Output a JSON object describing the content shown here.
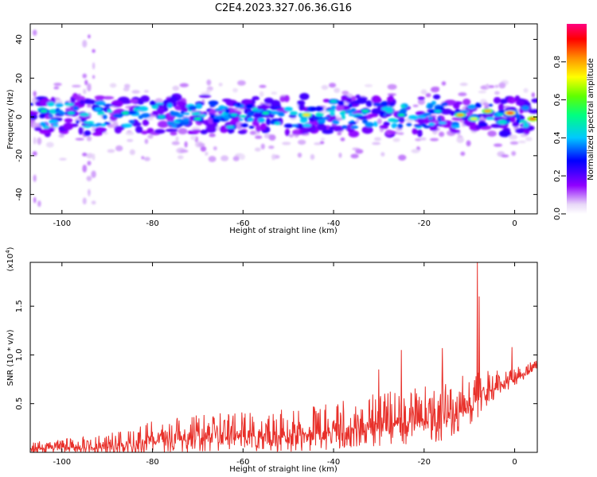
{
  "title": "C2E4.2023.327.06.36.G16",
  "colors": {
    "snr_line": "#e8302a",
    "frame": "#000000"
  },
  "chart_data": [
    {
      "type": "heatmap",
      "xlabel": "Height of straight line (km)",
      "ylabel": "Frequency (Hz)",
      "xlim": [
        -107,
        5
      ],
      "ylim": [
        -50,
        48
      ],
      "x_ticks": [
        -100,
        -80,
        -60,
        -40,
        -20,
        0
      ],
      "x_tick_labels": [
        "-100",
        "-80",
        "-60",
        "-40",
        "-20",
        "0"
      ],
      "y_ticks": [
        -40,
        -20,
        0,
        20,
        40
      ],
      "y_tick_labels": [
        "-40",
        "-20",
        "0",
        "20",
        "40"
      ],
      "colorbar": {
        "label": "Normalized spectral amplitude",
        "range": [
          0,
          1
        ],
        "ticks": [
          0.0,
          0.2,
          0.4,
          0.6,
          0.8
        ],
        "tick_labels": [
          "0.0",
          "0.2",
          "0.4",
          "0.6",
          "0.8"
        ]
      },
      "main_band": {
        "center_hz": 1,
        "half_width_hz": 7
      },
      "spots": [
        {
          "x": -104,
          "f": 3,
          "v": 0.5
        },
        {
          "x": -98,
          "f": 2,
          "v": 0.45
        },
        {
          "x": -92,
          "f": 4,
          "v": 0.4
        },
        {
          "x": -86,
          "f": 2,
          "v": 0.5
        },
        {
          "x": -78,
          "f": 0,
          "v": 0.45
        },
        {
          "x": -70,
          "f": -1,
          "v": 0.5
        },
        {
          "x": -62,
          "f": 1,
          "v": 0.45
        },
        {
          "x": -55,
          "f": 2,
          "v": 0.5
        },
        {
          "x": -46,
          "f": 1,
          "v": 0.75
        },
        {
          "x": -40,
          "f": 8,
          "v": 0.45
        },
        {
          "x": -33,
          "f": 3,
          "v": 0.5
        },
        {
          "x": -25,
          "f": 1,
          "v": 0.5
        },
        {
          "x": -17,
          "f": 3,
          "v": 0.45
        },
        {
          "x": -12,
          "f": 1,
          "v": 0.8
        },
        {
          "x": -9,
          "f": -1,
          "v": 0.7
        },
        {
          "x": -6,
          "f": 3,
          "v": 0.8
        },
        {
          "x": -1,
          "f": 2,
          "v": 0.95
        },
        {
          "x": 4,
          "f": -1,
          "v": 0.85
        }
      ]
    },
    {
      "type": "line",
      "xlabel": "Height of straight line (km)",
      "ylabel": "SNR (10 * v/v)",
      "y_multiplier": "(x10",
      "y_multiplier_exp": "4",
      "y_multiplier_close": ")",
      "xlim": [
        -107,
        5
      ],
      "ylim": [
        0,
        19500
      ],
      "x_ticks": [
        -100,
        -80,
        -60,
        -40,
        -20,
        0
      ],
      "x_tick_labels": [
        "-100",
        "-80",
        "-60",
        "-40",
        "-20",
        "0"
      ],
      "y_ticks": [
        5000,
        10000,
        15000
      ],
      "y_tick_labels": [
        "0.5",
        "1.0",
        "1.5"
      ],
      "envelope": {
        "x": [
          -107,
          -100,
          -92,
          -85,
          -80,
          -70,
          -60,
          -50,
          -42,
          -35,
          -28,
          -20,
          -15,
          -10,
          -5,
          -2,
          0,
          5
        ],
        "base": [
          400,
          500,
          500,
          700,
          1200,
          1500,
          1600,
          1700,
          2000,
          2400,
          2800,
          3200,
          3600,
          4500,
          6500,
          7200,
          7500,
          8800
        ],
        "amp": [
          700,
          900,
          1300,
          1800,
          2200,
          2400,
          2600,
          2800,
          3000,
          3200,
          3600,
          3800,
          4000,
          3500,
          2000,
          1500,
          1200,
          700
        ]
      },
      "peaks": [
        {
          "x": -8.2,
          "y": 19500
        },
        {
          "x": -7.8,
          "y": 16000
        },
        {
          "x": -0.6,
          "y": 10800
        },
        {
          "x": -25,
          "y": 10500
        },
        {
          "x": -16,
          "y": 10700
        },
        {
          "x": -30,
          "y": 8500
        }
      ]
    }
  ]
}
